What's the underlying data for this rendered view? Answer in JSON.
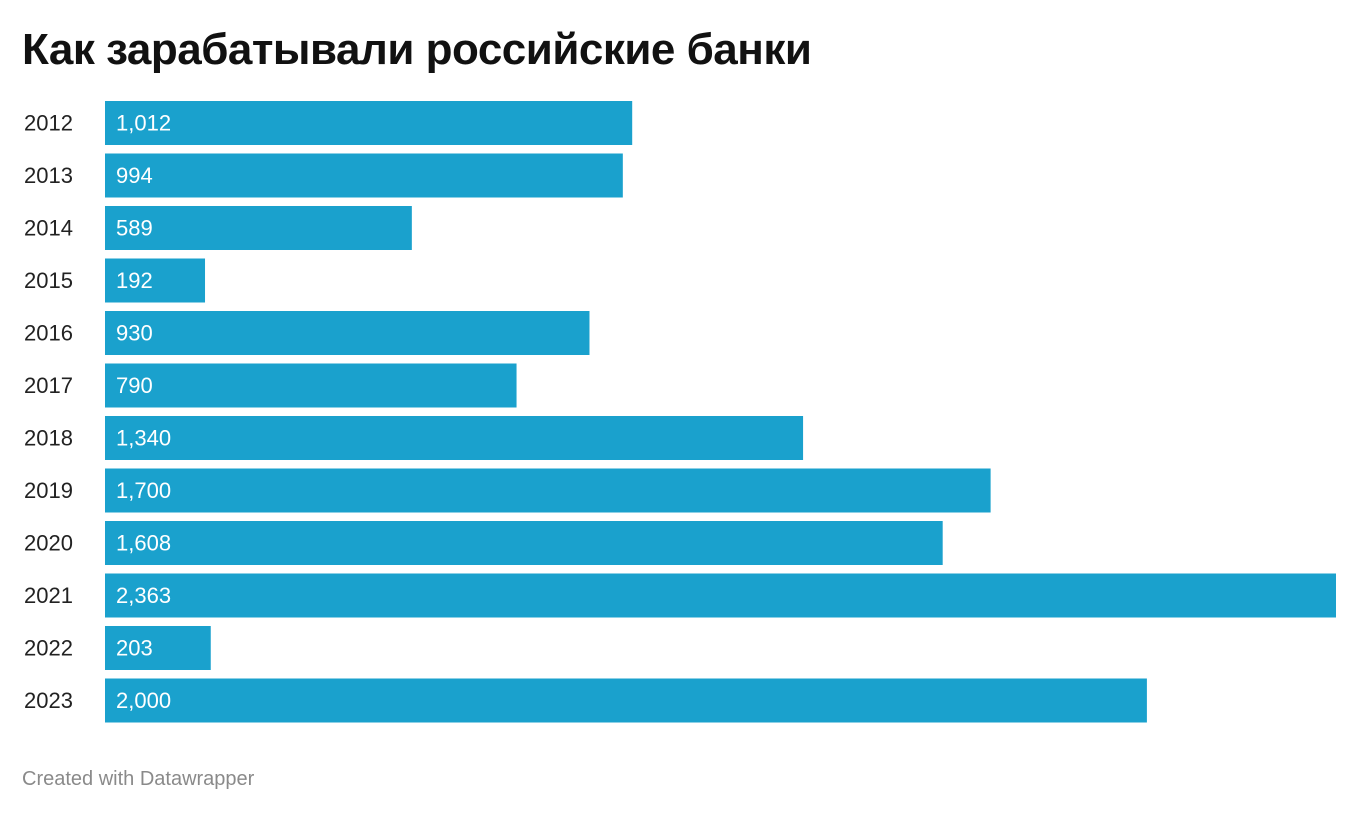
{
  "chart_data": {
    "type": "bar",
    "orientation": "horizontal",
    "title": "Как зарабатывали российские банки",
    "categories": [
      "2012",
      "2013",
      "2014",
      "2015",
      "2016",
      "2017",
      "2018",
      "2019",
      "2020",
      "2021",
      "2022",
      "2023"
    ],
    "values": [
      1012,
      994,
      589,
      192,
      930,
      790,
      1340,
      1700,
      1608,
      2363,
      203,
      2000
    ],
    "value_labels": [
      "1,012",
      "994",
      "589",
      "192",
      "930",
      "790",
      "1,340",
      "1,700",
      "1,608",
      "2,363",
      "203",
      "2,000"
    ],
    "xlim": [
      0,
      2363
    ],
    "grid": false,
    "bar_color": "#1aa1cd"
  },
  "footer": {
    "credit": "Created with Datawrapper"
  }
}
